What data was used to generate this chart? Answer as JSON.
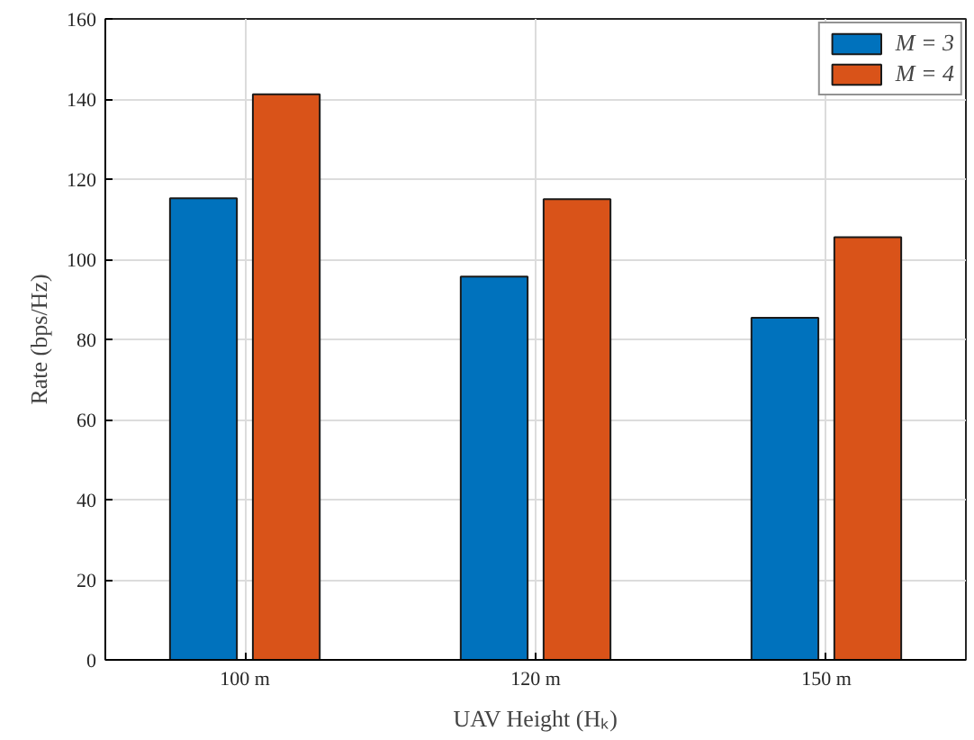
{
  "chart_data": {
    "type": "bar",
    "xlabel": "UAV Height (Hₖ)",
    "ylabel": "Rate (bps/Hz)",
    "categories": [
      "100 m",
      "120 m",
      "150 m"
    ],
    "series": [
      {
        "name": "M = 3",
        "color": "#0072bd",
        "values": [
          115.2,
          95.7,
          85.4
        ]
      },
      {
        "name": "M = 4",
        "color": "#d95319",
        "values": [
          141.2,
          115,
          105.5
        ]
      }
    ],
    "ylim": [
      0,
      160
    ],
    "yticks": [
      0,
      20,
      40,
      60,
      80,
      100,
      120,
      140,
      160
    ],
    "grid": true,
    "legend": "top right"
  }
}
